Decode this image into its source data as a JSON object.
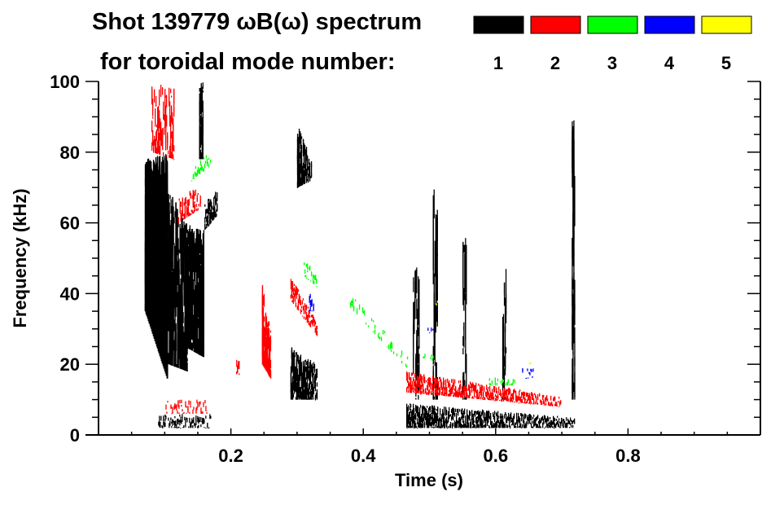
{
  "chart_data": {
    "type": "heatmap",
    "title": "Shot 139779 ωB(ω) spectrum",
    "subtitle": "for toroidal mode number:",
    "xlabel": "Time (s)",
    "ylabel": "Frequency (kHz)",
    "xlim": [
      0,
      1.0
    ],
    "ylim": [
      0,
      100
    ],
    "xticks": [
      0.2,
      0.4,
      0.6,
      0.8
    ],
    "xtick_labels": [
      "0.2",
      "0.4",
      "0.6",
      "0.8"
    ],
    "yticks": [
      0,
      20,
      40,
      60,
      80,
      100
    ],
    "ytick_labels": [
      "0",
      "20",
      "40",
      "60",
      "80",
      "100"
    ],
    "x_minor_step": 0.05,
    "y_minor_step": 5,
    "grid": false,
    "legend_placement": "top-right",
    "legend": [
      {
        "label": "1",
        "color": "#000000"
      },
      {
        "label": "2",
        "color": "#ff0000"
      },
      {
        "label": "3",
        "color": "#00ff00"
      },
      {
        "label": "4",
        "color": "#0000ff"
      },
      {
        "label": "5",
        "color": "#ffff00"
      }
    ],
    "features": [
      {
        "mode": 1,
        "t": [
          0.07,
          0.105
        ],
        "f_start": [
          35,
          78
        ],
        "f_end": [
          16,
          80
        ],
        "density": 0.9
      },
      {
        "mode": 1,
        "t": [
          0.105,
          0.135
        ],
        "f_start": [
          20,
          70
        ],
        "f_end": [
          18,
          60
        ],
        "density": 0.35
      },
      {
        "mode": 1,
        "t": [
          0.13,
          0.16
        ],
        "f_start": [
          25,
          60
        ],
        "f_end": [
          22,
          58
        ],
        "density": 0.6
      },
      {
        "mode": 1,
        "t": [
          0.16,
          0.18
        ],
        "f_start": [
          58,
          66
        ],
        "f_end": [
          62,
          70
        ],
        "density": 0.7
      },
      {
        "mode": 1,
        "t": [
          0.152,
          0.158
        ],
        "f_start": [
          78,
          100
        ],
        "f_end": [
          78,
          100
        ],
        "density": 0.6
      },
      {
        "mode": 1,
        "t": [
          0.09,
          0.17
        ],
        "f_start": [
          2,
          6
        ],
        "f_end": [
          2,
          6
        ],
        "density": 0.55
      },
      {
        "mode": 1,
        "t": [
          0.3,
          0.322
        ],
        "f_start": [
          70,
          88
        ],
        "f_end": [
          72,
          78
        ],
        "density": 0.8
      },
      {
        "mode": 1,
        "t": [
          0.29,
          0.33
        ],
        "f_start": [
          10,
          25
        ],
        "f_end": [
          10,
          20
        ],
        "density": 0.8
      },
      {
        "mode": 1,
        "t": [
          0.465,
          0.72
        ],
        "f_start": [
          2,
          9
        ],
        "f_end": [
          2,
          5
        ],
        "density": 0.95
      },
      {
        "mode": 1,
        "t": [
          0.475,
          0.485
        ],
        "f_start": [
          10,
          50
        ],
        "f_end": [
          10,
          50
        ],
        "density": 0.15
      },
      {
        "mode": 1,
        "t": [
          0.505,
          0.512
        ],
        "f_start": [
          10,
          70
        ],
        "f_end": [
          10,
          70
        ],
        "density": 0.2
      },
      {
        "mode": 1,
        "t": [
          0.55,
          0.556
        ],
        "f_start": [
          10,
          58
        ],
        "f_end": [
          10,
          58
        ],
        "density": 0.2
      },
      {
        "mode": 1,
        "t": [
          0.61,
          0.616
        ],
        "f_start": [
          10,
          48
        ],
        "f_end": [
          10,
          48
        ],
        "density": 0.2
      },
      {
        "mode": 1,
        "t": [
          0.715,
          0.72
        ],
        "f_start": [
          10,
          90
        ],
        "f_end": [
          10,
          90
        ],
        "density": 0.12
      },
      {
        "mode": 2,
        "t": [
          0.08,
          0.115
        ],
        "f_start": [
          80,
          100
        ],
        "f_end": [
          78,
          98
        ],
        "density": 0.25
      },
      {
        "mode": 2,
        "t": [
          0.12,
          0.155
        ],
        "f_start": [
          60,
          68
        ],
        "f_end": [
          64,
          70
        ],
        "density": 0.5
      },
      {
        "mode": 2,
        "t": [
          0.1,
          0.165
        ],
        "f_start": [
          6,
          10
        ],
        "f_end": [
          6,
          10
        ],
        "density": 0.3
      },
      {
        "mode": 2,
        "t": [
          0.208,
          0.213
        ],
        "f_start": [
          17,
          22
        ],
        "f_end": [
          17,
          22
        ],
        "density": 0.7
      },
      {
        "mode": 2,
        "t": [
          0.247,
          0.26
        ],
        "f_start": [
          20,
          43
        ],
        "f_end": [
          16,
          30
        ],
        "density": 0.8
      },
      {
        "mode": 2,
        "t": [
          0.29,
          0.33
        ],
        "f_start": [
          38,
          45
        ],
        "f_end": [
          28,
          32
        ],
        "density": 0.8
      },
      {
        "mode": 2,
        "t": [
          0.465,
          0.7
        ],
        "f_start": [
          12,
          18
        ],
        "f_end": [
          8,
          11
        ],
        "density": 0.9
      },
      {
        "mode": 3,
        "t": [
          0.14,
          0.17
        ],
        "f_start": [
          72,
          76
        ],
        "f_end": [
          76,
          80
        ],
        "density": 0.5
      },
      {
        "mode": 3,
        "t": [
          0.31,
          0.33
        ],
        "f_start": [
          45,
          50
        ],
        "f_end": [
          42,
          46
        ],
        "density": 0.6
      },
      {
        "mode": 3,
        "t": [
          0.38,
          0.47
        ],
        "f_start": [
          36,
          40
        ],
        "f_end": [
          18,
          22
        ],
        "density": 0.15
      },
      {
        "mode": 3,
        "t": [
          0.49,
          0.51
        ],
        "f_start": [
          21,
          23
        ],
        "f_end": [
          21,
          23
        ],
        "density": 0.7
      },
      {
        "mode": 3,
        "t": [
          0.59,
          0.63
        ],
        "f_start": [
          14,
          17
        ],
        "f_end": [
          14,
          16
        ],
        "density": 0.4
      },
      {
        "mode": 4,
        "t": [
          0.318,
          0.325
        ],
        "f_start": [
          35,
          40
        ],
        "f_end": [
          35,
          40
        ],
        "density": 0.6
      },
      {
        "mode": 4,
        "t": [
          0.497,
          0.505
        ],
        "f_start": [
          29,
          31
        ],
        "f_end": [
          29,
          31
        ],
        "density": 0.8
      },
      {
        "mode": 4,
        "t": [
          0.64,
          0.66
        ],
        "f_start": [
          16,
          19
        ],
        "f_end": [
          16,
          19
        ],
        "density": 0.5
      },
      {
        "mode": 5,
        "t": [
          0.51,
          0.514
        ],
        "f_start": [
          36,
          38
        ],
        "f_end": [
          36,
          38
        ],
        "density": 0.6
      },
      {
        "mode": 5,
        "t": [
          0.65,
          0.654
        ],
        "f_start": [
          20,
          22
        ],
        "f_end": [
          20,
          22
        ],
        "density": 0.6
      }
    ]
  }
}
